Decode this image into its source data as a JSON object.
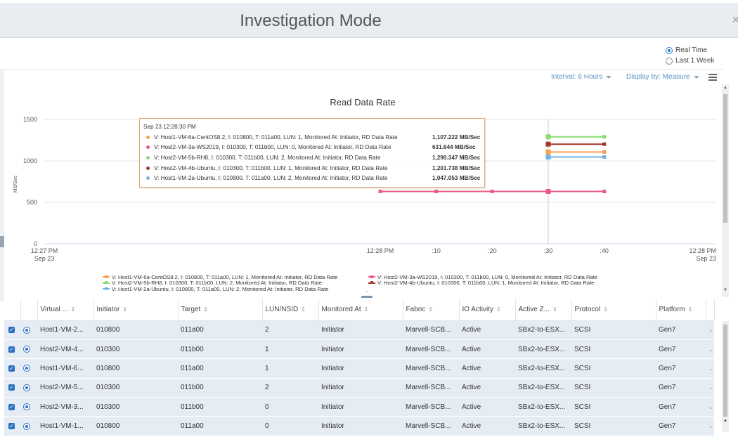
{
  "header": {
    "title": "Investigation Mode",
    "close_glyph": "×"
  },
  "time_range": {
    "options": [
      "Real Time",
      "Last 1 Week"
    ],
    "selected": "Real Time"
  },
  "toolbar": {
    "interval": "Interval: 6 Hours",
    "display_by": "Display by: Measure",
    "menu_icon": "hamburger-icon"
  },
  "chart_data": {
    "type": "line",
    "title": "Read Data Rate",
    "ylabel": "MB/Sec",
    "xlabel": "",
    "ylim": [
      0,
      1500
    ],
    "yticks": [
      "0",
      "500",
      "1000",
      "1500"
    ],
    "xticks": [
      {
        "line1": "12:27 PM",
        "line2": "Sep 23"
      },
      {
        "line1": "12:28 PM",
        "line2": ""
      },
      {
        "line1": ":10",
        "line2": ""
      },
      {
        "line1": ":20",
        "line2": ""
      },
      {
        "line1": ":30",
        "line2": ""
      },
      {
        "line1": ":40",
        "line2": ""
      },
      {
        "line1": "12:28 PM",
        "line2": "Sep 23"
      }
    ],
    "x_seconds": [
      0,
      60,
      70,
      80,
      90,
      100,
      120
    ],
    "grid": true,
    "legend_position": "bottom",
    "series": [
      {
        "name": "V: Host1-VM-6a-CentOS8.2, I: 010800, T: 011a00, LUN: 1, Monitored At: Initiator, RD Data Rate",
        "color": "#f5a14f",
        "x": [
          90,
          100
        ],
        "values": [
          1107.222,
          1107.222
        ]
      },
      {
        "name": "V: Host2-VM-3a-WS2019, I: 010300, T: 011b00, LUN: 0, Monitored At: Initiator, RD Data Rate",
        "color": "#ea5a84",
        "x": [
          60,
          70,
          80,
          90,
          100
        ],
        "values": [
          631.644,
          631.644,
          631.644,
          631.644,
          631.644
        ]
      },
      {
        "name": "V: Host2-VM-5b-RH8, I: 010300, T: 011b00, LUN: 2, Monitored At: Initiator, RD Data Rate",
        "color": "#86dc6e",
        "x": [
          90,
          100
        ],
        "values": [
          1290.347,
          1290.347
        ]
      },
      {
        "name": "V: Host2-VM-4b-Ubuntu, I: 010300, T: 011b00, LUN: 1, Monitored At: Initiator, RD Data Rate",
        "color": "#a3372c",
        "x": [
          90,
          100
        ],
        "values": [
          1201.738,
          1201.738
        ]
      },
      {
        "name": "V: Host1-VM-2a-Ubuntu, I: 010800, T: 011a00, LUN: 2, Monitored At: Initiator, RD Data Rate",
        "color": "#6fb3ea",
        "x": [
          90,
          100
        ],
        "values": [
          1047.053,
          1047.053
        ]
      }
    ],
    "crosshair_x": 90,
    "tooltip": {
      "header": "Sep 23 12:28:30 PM",
      "rows": [
        {
          "label": "V: Host1-VM-6a-CentOS8.2, I: 010800, T: 011a00, LUN: 1, Monitored At: Initiator, RD Data Rate",
          "value": "1,107.222 MB/Sec",
          "color": "#f5a14f"
        },
        {
          "label": "V: Host2-VM-3a-WS2019, I: 010300, T: 011b00, LUN: 0, Monitored At: Initiator, RD Data Rate",
          "value": "631.644 MB/Sec",
          "color": "#ea5a84"
        },
        {
          "label": "V: Host2-VM-5b-RH8, I: 010300, T: 011b00, LUN: 2, Monitored At: Initiator, RD Data Rate",
          "value": "1,290.347 MB/Sec",
          "color": "#86dc6e"
        },
        {
          "label": "V: Host2-VM-4b-Ubuntu, I: 010300, T: 011b00, LUN: 1, Monitored At: Initiator, RD Data Rate",
          "value": "1,201.738 MB/Sec",
          "color": "#a3372c"
        },
        {
          "label": "V: Host1-VM-2a-Ubuntu, I: 010800, T: 011a00, LUN: 2, Monitored At: Initiator, RD Data Rate",
          "value": "1,047.053 MB/Sec",
          "color": "#6fb3ea"
        }
      ]
    }
  },
  "table": {
    "columns": [
      "Virtual ...",
      "Initiator",
      "Target",
      "LUN/NSID",
      "Monitored At",
      "Fabric",
      "IO Activity",
      "Active Z...",
      "Protocol",
      "Platform"
    ],
    "rows": [
      [
        "Host1-VM-2...",
        "010800",
        "011a00",
        "2",
        "Initiator",
        "Marvell-SCB...",
        "Active",
        "SBx2-to-ESX...",
        "SCSI",
        "Gen7"
      ],
      [
        "Host2-VM-4...",
        "010300",
        "011b00",
        "1",
        "Initiator",
        "Marvell-SCB...",
        "Active",
        "SBx2-to-ESX...",
        "SCSI",
        "Gen7"
      ],
      [
        "Host1-VM-6...",
        "010800",
        "011a00",
        "1",
        "Initiator",
        "Marvell-SCB...",
        "Active",
        "SBx2-to-ESX...",
        "SCSI",
        "Gen7"
      ],
      [
        "Host2-VM-5...",
        "010300",
        "011b00",
        "2",
        "Initiator",
        "Marvell-SCB...",
        "Active",
        "SBx2-to-ESX...",
        "SCSI",
        "Gen7"
      ],
      [
        "Host2-VM-3...",
        "010300",
        "011b00",
        "0",
        "Initiator",
        "Marvell-SCB...",
        "Active",
        "SBx2-to-ESX...",
        "SCSI",
        "Gen7"
      ],
      [
        "Host1-VM-1...",
        "010800",
        "011a00",
        "0",
        "Initiator",
        "Marvell-SCB...",
        "Active",
        "SBx2-to-ESX...",
        "SCSI",
        "Gen7"
      ]
    ]
  }
}
